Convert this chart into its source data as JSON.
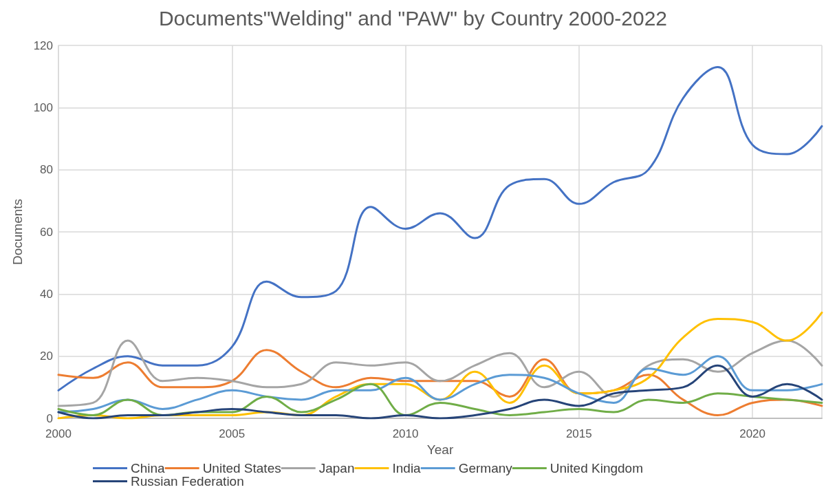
{
  "chart_data": {
    "type": "line",
    "title": "Documents\"Welding\" and \"PAW\" by Country 2000-2022",
    "xlabel": "Year",
    "ylabel": "Documents",
    "x": [
      2000,
      2001,
      2002,
      2003,
      2004,
      2005,
      2006,
      2007,
      2008,
      2009,
      2010,
      2011,
      2012,
      2013,
      2014,
      2015,
      2016,
      2017,
      2018,
      2019,
      2020,
      2021,
      2022
    ],
    "xlim": [
      2000,
      2022
    ],
    "xticks": [
      2000,
      2005,
      2010,
      2015,
      2020
    ],
    "ylim": [
      0,
      120
    ],
    "yticks": [
      0,
      20,
      40,
      60,
      80,
      100,
      120
    ],
    "grid": true,
    "legend": "bottom",
    "marker": "none",
    "line_style": "solid",
    "series": [
      {
        "name": "China",
        "color": "#4472c4",
        "values": [
          9,
          16,
          20,
          17,
          17,
          23,
          44,
          39,
          41,
          68,
          61,
          66,
          58,
          75,
          77,
          69,
          76,
          80,
          103,
          113,
          88,
          85,
          94
        ]
      },
      {
        "name": "United States",
        "color": "#ed7d31",
        "values": [
          14,
          13,
          18,
          10,
          10,
          12,
          22,
          15,
          10,
          13,
          12,
          12,
          12,
          7,
          19,
          8,
          9,
          14,
          6,
          1,
          5,
          6,
          4
        ]
      },
      {
        "name": "Japan",
        "color": "#a5a5a5",
        "values": [
          4,
          5,
          25,
          12,
          13,
          12,
          10,
          11,
          18,
          17,
          18,
          12,
          17,
          21,
          10,
          15,
          7,
          17,
          19,
          15,
          21,
          25,
          17
        ]
      },
      {
        "name": "India",
        "color": "#ffc000",
        "values": [
          0,
          1,
          0,
          1,
          1,
          1,
          2,
          1,
          7,
          11,
          11,
          6,
          15,
          5,
          17,
          8,
          9,
          13,
          26,
          32,
          31,
          25,
          34
        ]
      },
      {
        "name": "Germany",
        "color": "#5b9bd5",
        "values": [
          2,
          3,
          6,
          3,
          6,
          9,
          7,
          6,
          9,
          9,
          13,
          6,
          11,
          14,
          13,
          8,
          5,
          16,
          14,
          20,
          9,
          9,
          11
        ]
      },
      {
        "name": "United Kingdom",
        "color": "#70ad47",
        "values": [
          3,
          1,
          6,
          1,
          2,
          2,
          7,
          2,
          6,
          11,
          1,
          5,
          3,
          1,
          2,
          3,
          2,
          6,
          5,
          8,
          7,
          6,
          5
        ]
      },
      {
        "name": "Russian Federation",
        "color": "#264478",
        "values": [
          2,
          0,
          1,
          1,
          2,
          3,
          2,
          1,
          1,
          0,
          1,
          0,
          1,
          3,
          6,
          4,
          8,
          9,
          10,
          17,
          7,
          11,
          6
        ]
      }
    ]
  }
}
